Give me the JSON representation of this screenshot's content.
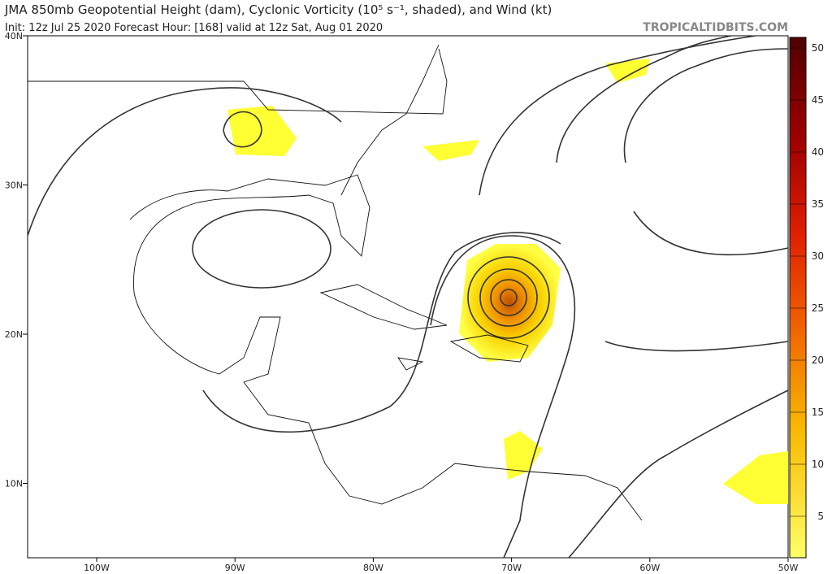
{
  "header": {
    "title": "JMA 850mb Geopotential Height (dam), Cyclonic Vorticity (10⁵ s⁻¹, shaded), and Wind (kt)",
    "init": "Init: 12z Jul 25 2020   Forecast Hour: [168]   valid at 12z Sat, Aug 01 2020",
    "source": "TROPICALTIDBITS.COM"
  },
  "map": {
    "lat_labels": [
      {
        "value": 40,
        "label": "40N"
      },
      {
        "value": 30,
        "label": "30N"
      },
      {
        "value": 20,
        "label": "20N"
      },
      {
        "value": 10,
        "label": "10N"
      }
    ],
    "lon_labels": [
      {
        "value": -100,
        "label": "100W"
      },
      {
        "value": -90,
        "label": "90W"
      },
      {
        "value": -80,
        "label": "80W"
      },
      {
        "value": -70,
        "label": "70W"
      },
      {
        "value": -60,
        "label": "60W"
      },
      {
        "value": -50,
        "label": "50W"
      }
    ]
  },
  "colorbar": {
    "ticks": [
      50,
      45,
      40,
      35,
      30,
      25,
      20,
      15,
      10,
      5
    ]
  }
}
